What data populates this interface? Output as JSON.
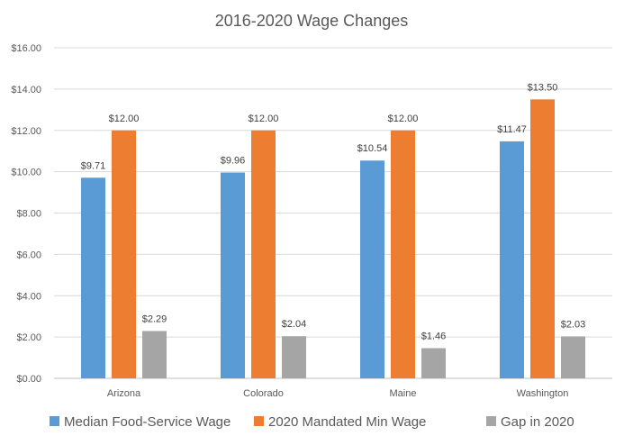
{
  "chart_data": {
    "type": "bar",
    "title": "2016-2020 Wage Changes",
    "categories": [
      "Arizona",
      "Colorado",
      "Maine",
      "Washington"
    ],
    "series": [
      {
        "name": "Median Food-Service Wage",
        "color": "#5b9bd5",
        "values": [
          9.71,
          9.96,
          10.54,
          11.47
        ],
        "labels": [
          "$9.71",
          "$9.96",
          "$10.54",
          "$11.47"
        ]
      },
      {
        "name": "2020 Mandated Min Wage",
        "color": "#ed7d31",
        "values": [
          12.0,
          12.0,
          12.0,
          13.5
        ],
        "labels": [
          "$12.00",
          "$12.00",
          "$12.00",
          "$13.50"
        ]
      },
      {
        "name": "Gap in 2020",
        "color": "#a5a5a5",
        "values": [
          2.29,
          2.04,
          1.46,
          2.03
        ],
        "labels": [
          "$2.29",
          "$2.04",
          "$1.46",
          "$2.03"
        ]
      }
    ],
    "ylim": [
      0,
      16
    ],
    "yticks": [
      0,
      2,
      4,
      6,
      8,
      10,
      12,
      14,
      16
    ],
    "ytick_labels": [
      "$0.00",
      "$2.00",
      "$4.00",
      "$6.00",
      "$8.00",
      "$10.00",
      "$12.00",
      "$14.00",
      "$16.00"
    ],
    "xlabel": "",
    "ylabel": "",
    "grid": true,
    "legend_position": "bottom"
  }
}
